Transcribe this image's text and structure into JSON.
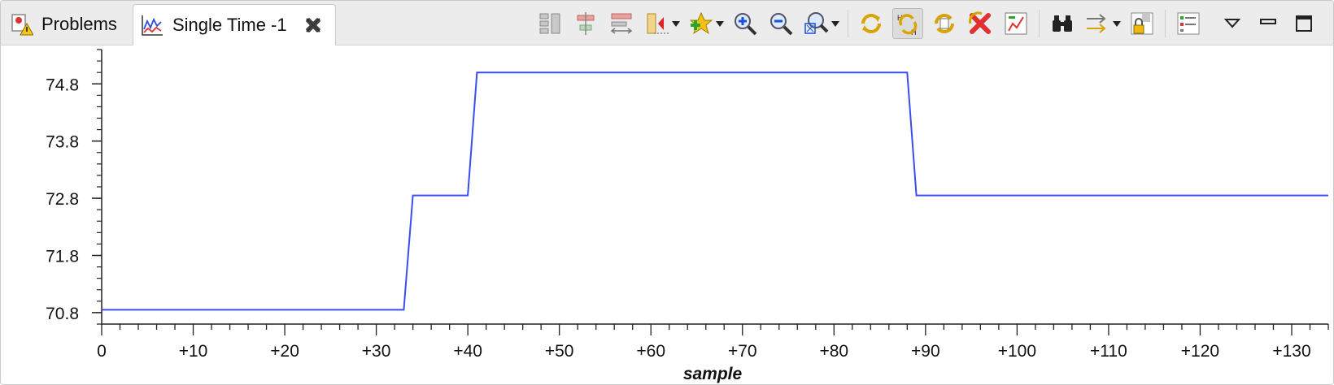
{
  "tabs": {
    "problems_label": "Problems",
    "active_label": "Single Time -1"
  },
  "toolbar": {
    "icons": [
      "split-horizontal-icon",
      "align-center-icon",
      "align-distribute-icon",
      "marker-dropdown-icon",
      "add-star-dropdown-icon",
      "zoom-in-icon",
      "zoom-out-icon",
      "zoom-region-dropdown-icon",
      "refresh-icon",
      "sync-h-icon",
      "sync-multi-icon",
      "delete-red-x-icon",
      "chart-settings-icon",
      "binoculars-icon",
      "export-arrows-dropdown-icon",
      "lock-icon",
      "list-settings-icon",
      "view-menu-icon",
      "minimize-icon",
      "maximize-icon"
    ]
  },
  "chart_data": {
    "type": "line",
    "xlabel": "sample",
    "ylabel": "",
    "xlim": [
      0,
      134
    ],
    "ylim": [
      70.6,
      75.4
    ],
    "x_ticks": [
      "0",
      "+10",
      "+20",
      "+30",
      "+40",
      "+50",
      "+60",
      "+70",
      "+80",
      "+90",
      "+100",
      "+110",
      "+120",
      "+130"
    ],
    "y_ticks": [
      "70.8",
      "71.8",
      "72.8",
      "73.8",
      "74.8"
    ],
    "series": [
      {
        "color": "#3a4ef0",
        "points": [
          [
            0,
            70.85
          ],
          [
            33,
            70.85
          ],
          [
            34,
            72.85
          ],
          [
            40,
            72.85
          ],
          [
            41,
            75.0
          ],
          [
            88,
            75.0
          ],
          [
            89,
            72.85
          ],
          [
            134,
            72.85
          ]
        ]
      }
    ]
  }
}
